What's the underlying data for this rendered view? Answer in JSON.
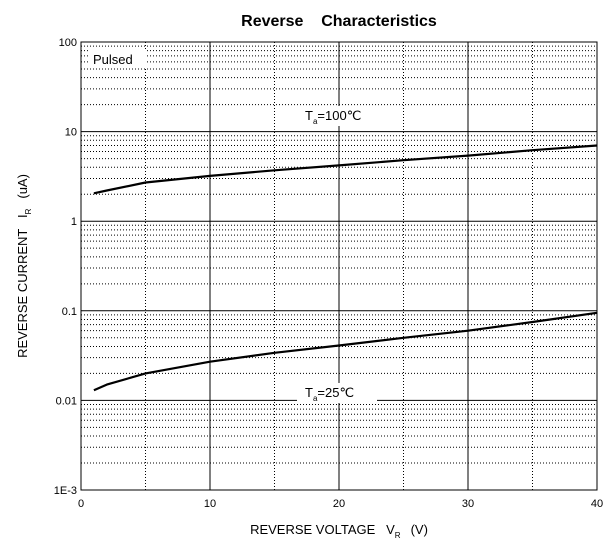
{
  "chart_data": {
    "type": "line",
    "title": "Reverse    Characteristics",
    "xlabel": {
      "text": "REVERSE VOLTAGE   V",
      "sub": "R",
      "unit": "(V)"
    },
    "ylabel": {
      "text": "REVERSE CURRENT   I",
      "sub": "R",
      "unit": "(uA)"
    },
    "annotations": [
      {
        "text": "Pulsed"
      },
      {
        "text": "T",
        "sub": "a",
        "rest": "=100℃"
      },
      {
        "text": "T",
        "sub": "a",
        "rest": "=25℃"
      }
    ],
    "x": [
      1,
      2,
      5,
      10,
      15,
      20,
      25,
      30,
      35,
      40
    ],
    "series": [
      {
        "name": "Ta=100℃",
        "color": "#000000",
        "values": [
          2.05,
          2.2,
          2.7,
          3.2,
          3.7,
          4.2,
          4.8,
          5.4,
          6.2,
          7.0
        ]
      },
      {
        "name": "Ta=25℃",
        "color": "#000000",
        "values": [
          0.013,
          0.015,
          0.02,
          0.027,
          0.034,
          0.041,
          0.05,
          0.06,
          0.075,
          0.095
        ]
      }
    ],
    "xlim": [
      0,
      40
    ],
    "xticks": [
      0,
      10,
      20,
      30,
      40
    ],
    "x_minor_ticks": [
      5,
      15,
      25,
      35
    ],
    "ylim": [
      0.001,
      100
    ],
    "yticks": [
      {
        "value": 0.001,
        "label": "1E-3"
      },
      0.01,
      0.1,
      1,
      10,
      100
    ],
    "y_minor_ticks": [
      0.002,
      0.003,
      0.004,
      0.005,
      0.006,
      0.007,
      0.008,
      0.009,
      0.02,
      0.03,
      0.04,
      0.05,
      0.06,
      0.07,
      0.08,
      0.09,
      0.2,
      0.3,
      0.4,
      0.5,
      0.6,
      0.7,
      0.8,
      0.9,
      2,
      3,
      4,
      5,
      6,
      7,
      8,
      9,
      20,
      30,
      40,
      50,
      60,
      70,
      80,
      90
    ],
    "yscale": "log",
    "grid": true
  }
}
